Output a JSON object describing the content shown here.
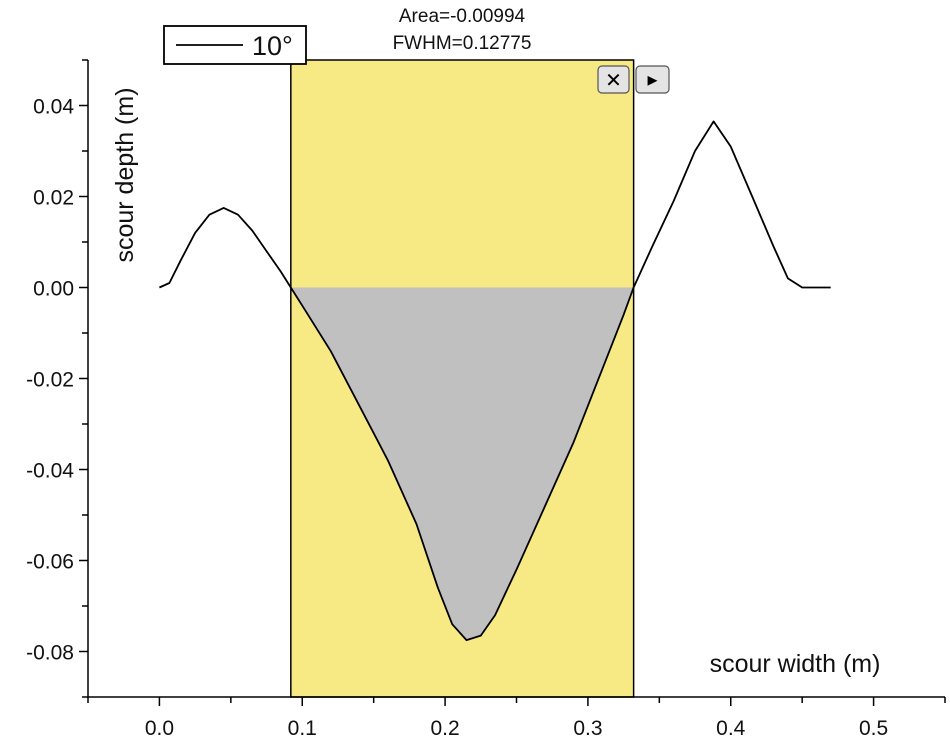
{
  "chart_data": {
    "type": "line",
    "xlabel": "scour width (m)",
    "ylabel": "scour depth (m)",
    "xlim": [
      -0.05,
      0.55
    ],
    "ylim": [
      -0.09,
      0.05
    ],
    "x_ticks": [
      "0.0",
      "0.1",
      "0.2",
      "0.3",
      "0.4",
      "0.5"
    ],
    "x_tick_values": [
      0.0,
      0.1,
      0.2,
      0.3,
      0.4,
      0.5
    ],
    "y_ticks": [
      "0.04",
      "0.02",
      "0.00",
      "-0.02",
      "-0.04",
      "-0.06",
      "-0.08"
    ],
    "y_tick_values": [
      0.04,
      0.02,
      0.0,
      -0.02,
      -0.04,
      -0.06,
      -0.08
    ],
    "legend": {
      "position": "top-left",
      "label": "10°"
    },
    "grid": false,
    "series": [
      {
        "name": "10°",
        "color": "#000000",
        "points": [
          [
            0.0,
            0.0
          ],
          [
            0.007,
            0.001
          ],
          [
            0.015,
            0.006
          ],
          [
            0.025,
            0.012
          ],
          [
            0.035,
            0.016
          ],
          [
            0.045,
            0.0175
          ],
          [
            0.055,
            0.016
          ],
          [
            0.065,
            0.0125
          ],
          [
            0.075,
            0.008
          ],
          [
            0.085,
            0.0035
          ],
          [
            0.092,
            0.0
          ],
          [
            0.1,
            -0.004
          ],
          [
            0.12,
            -0.014
          ],
          [
            0.14,
            -0.026
          ],
          [
            0.16,
            -0.038
          ],
          [
            0.18,
            -0.052
          ],
          [
            0.195,
            -0.066
          ],
          [
            0.205,
            -0.074
          ],
          [
            0.215,
            -0.0775
          ],
          [
            0.225,
            -0.0765
          ],
          [
            0.235,
            -0.072
          ],
          [
            0.25,
            -0.062
          ],
          [
            0.27,
            -0.048
          ],
          [
            0.29,
            -0.034
          ],
          [
            0.31,
            -0.018
          ],
          [
            0.325,
            -0.006
          ],
          [
            0.332,
            0.0
          ],
          [
            0.345,
            0.009
          ],
          [
            0.36,
            0.019
          ],
          [
            0.375,
            0.03
          ],
          [
            0.388,
            0.0365
          ],
          [
            0.4,
            0.031
          ],
          [
            0.415,
            0.02
          ],
          [
            0.43,
            0.009
          ],
          [
            0.44,
            0.002
          ],
          [
            0.45,
            0.0
          ],
          [
            0.47,
            0.0
          ]
        ]
      }
    ],
    "highlight_region": {
      "x_range": [
        0.092,
        0.332
      ],
      "fill_color": "#f7ea84",
      "area_fill_color": "#c0c0c0"
    },
    "annotations": {
      "area": "Area=-0.00994",
      "fwhm": "FWHM=0.12775"
    }
  },
  "toolbar": {
    "close_glyph": "✕",
    "expand_glyph": "▸",
    "close_icon": "close-icon",
    "expand_icon": "play-arrow-icon"
  }
}
